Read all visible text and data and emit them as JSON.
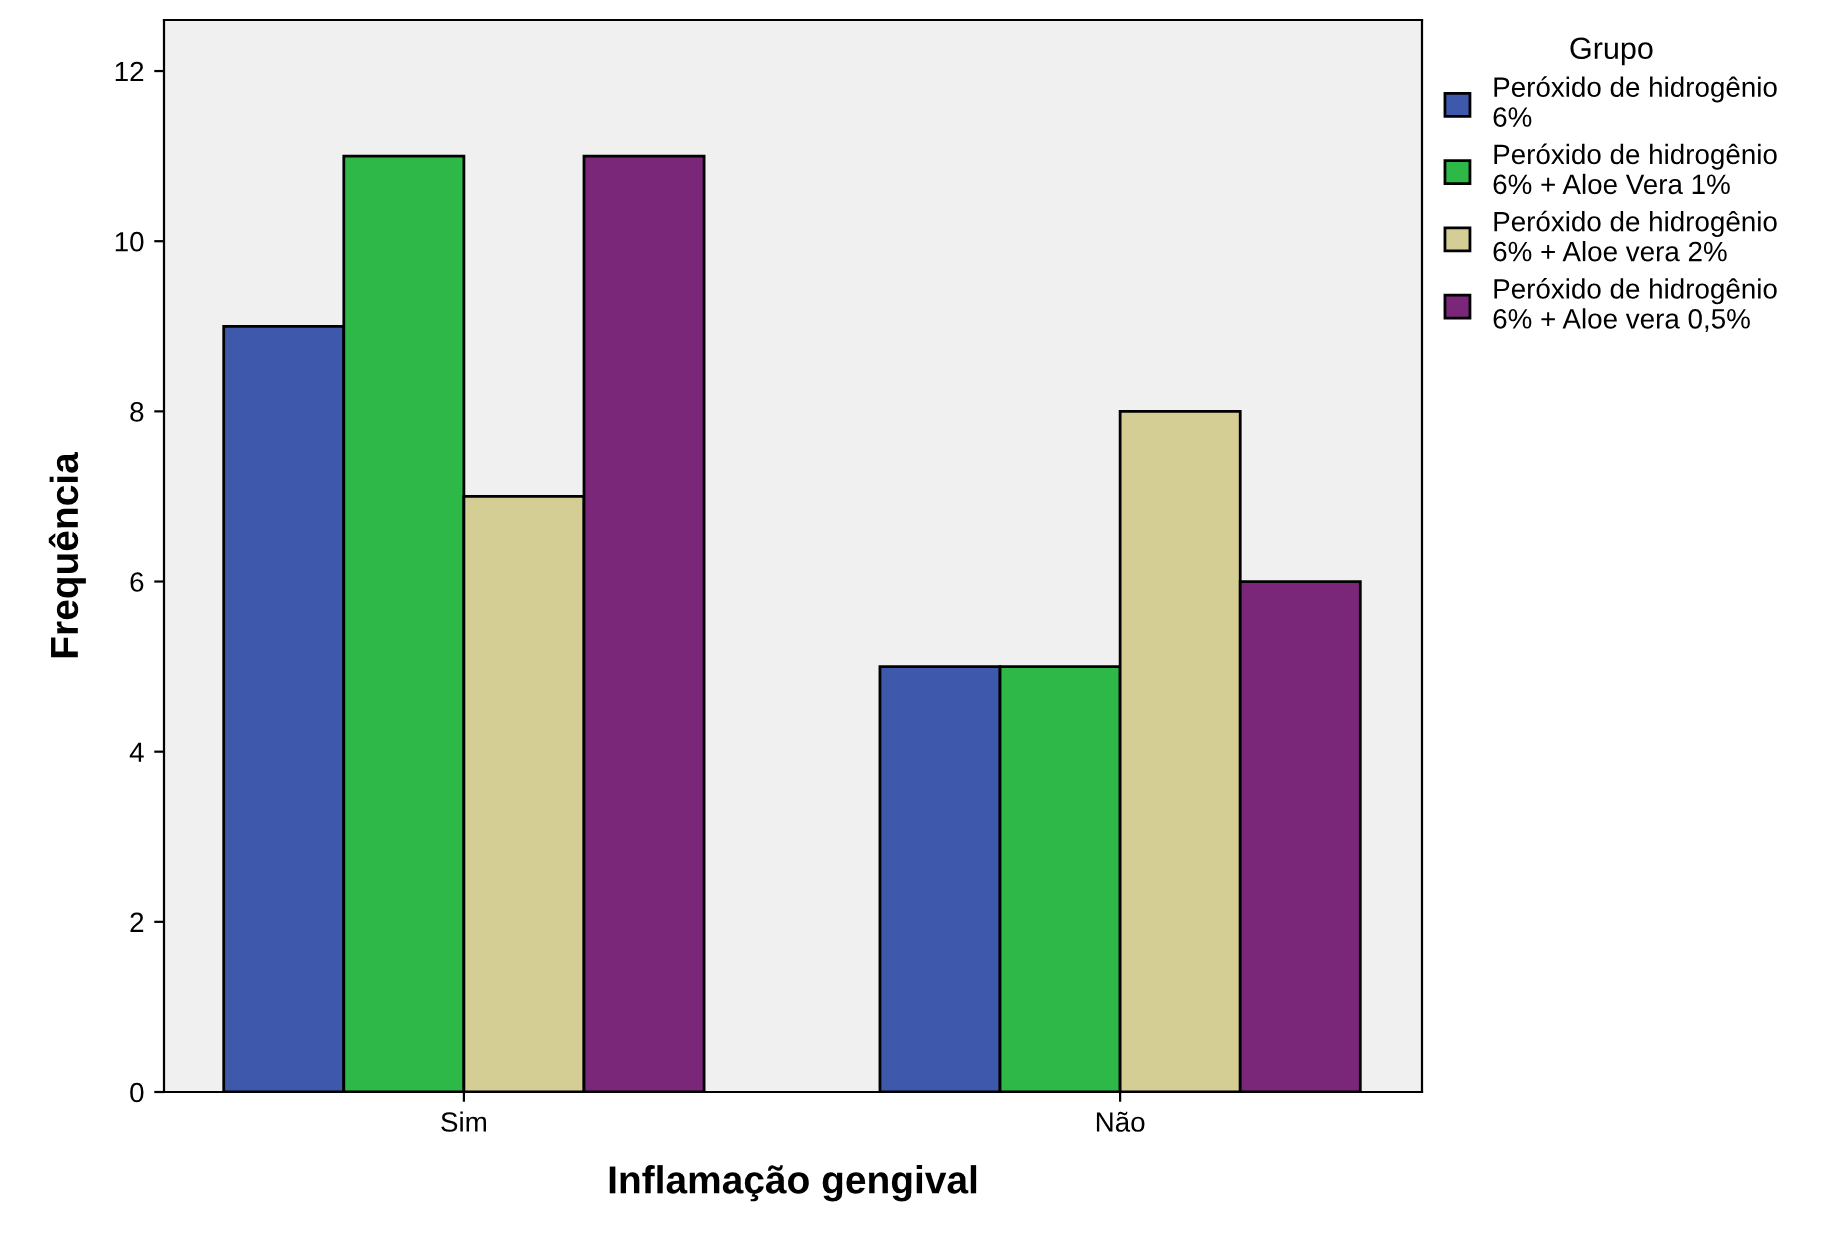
{
  "chart_data": {
    "type": "bar",
    "xlabel": "Inflamação gengival",
    "ylabel": "Frequência",
    "legend_title": "Grupo",
    "legend": "right",
    "grid": false,
    "categories": [
      "Sim",
      "Não"
    ],
    "ylim": [
      0,
      12.6
    ],
    "yticks": [
      0,
      2,
      4,
      6,
      8,
      10,
      12
    ],
    "series": [
      {
        "name": "Peróxido de hidrogênio\n6%",
        "color": "#3e58ac",
        "values": [
          9,
          5
        ]
      },
      {
        "name": "Peróxido de hidrogênio\n6% + Aloe Vera 1%",
        "color": "#2eb848",
        "values": [
          11,
          5
        ]
      },
      {
        "name": "Peróxido de hidrogênio\n6% + Aloe vera 2%",
        "color": "#d4ce95",
        "values": [
          7,
          8
        ]
      },
      {
        "name": "Peróxido de hidrogênio\n6% + Aloe vera 0,5%",
        "color": "#7a2779",
        "values": [
          11,
          6
        ]
      }
    ]
  }
}
